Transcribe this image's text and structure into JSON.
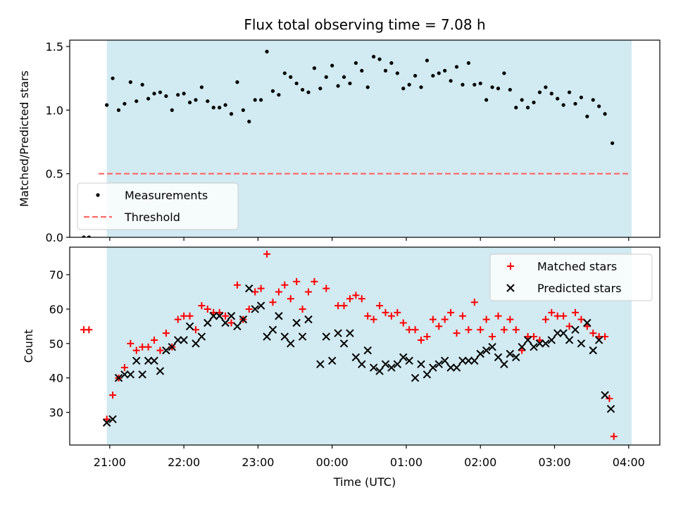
{
  "figure": {
    "title": "Flux total observing time = 7.08 h",
    "xlabel": "Time (UTC)",
    "xticks": [
      "21:00",
      "22:00",
      "23:00",
      "00:00",
      "01:00",
      "02:00",
      "03:00",
      "04:00"
    ]
  },
  "colors": {
    "shade": "#add8e6",
    "measurements": "#000000",
    "threshold": "#ff6666",
    "matched": "#ff0000",
    "predicted": "#000000"
  },
  "chart_data": [
    {
      "type": "scatter",
      "ylabel": "Matched/Predicted stars",
      "ylim": [
        0,
        1.55
      ],
      "xlim_hours": [
        -3.54,
        4.42
      ],
      "yticks": [
        "0.0",
        "0.5",
        "1.0",
        "1.5"
      ],
      "shaded_span_hours": [
        -3.04,
        4.04
      ],
      "legend": {
        "placement": "lower-left",
        "entries": [
          "Measurements",
          "Threshold"
        ]
      },
      "threshold": {
        "value": 0.5,
        "x_range_hours": [
          -3.15,
          4.0
        ]
      },
      "series": [
        {
          "name": "Measurements",
          "points": [
            [
              -3.35,
              0.0
            ],
            [
              -3.28,
              0.0
            ],
            [
              -3.04,
              1.04
            ],
            [
              -2.96,
              1.25
            ],
            [
              -2.88,
              1.0
            ],
            [
              -2.8,
              1.05
            ],
            [
              -2.72,
              1.22
            ],
            [
              -2.64,
              1.07
            ],
            [
              -2.56,
              1.2
            ],
            [
              -2.48,
              1.09
            ],
            [
              -2.4,
              1.13
            ],
            [
              -2.32,
              1.14
            ],
            [
              -2.24,
              1.11
            ],
            [
              -2.16,
              1.0
            ],
            [
              -2.08,
              1.12
            ],
            [
              -2.0,
              1.13
            ],
            [
              -1.92,
              1.06
            ],
            [
              -1.84,
              1.08
            ],
            [
              -1.76,
              1.18
            ],
            [
              -1.68,
              1.07
            ],
            [
              -1.6,
              1.02
            ],
            [
              -1.52,
              1.02
            ],
            [
              -1.44,
              1.04
            ],
            [
              -1.36,
              0.97
            ],
            [
              -1.28,
              1.22
            ],
            [
              -1.2,
              1.0
            ],
            [
              -1.12,
              0.91
            ],
            [
              -1.04,
              1.08
            ],
            [
              -0.96,
              1.08
            ],
            [
              -0.88,
              1.46
            ],
            [
              -0.8,
              1.15
            ],
            [
              -0.72,
              1.12
            ],
            [
              -0.64,
              1.29
            ],
            [
              -0.56,
              1.26
            ],
            [
              -0.48,
              1.21
            ],
            [
              -0.4,
              1.16
            ],
            [
              -0.32,
              1.14
            ],
            [
              -0.24,
              1.33
            ],
            [
              -0.16,
              1.17
            ],
            [
              -0.08,
              1.26
            ],
            [
              0.0,
              1.35
            ],
            [
              0.08,
              1.19
            ],
            [
              0.16,
              1.26
            ],
            [
              0.24,
              1.21
            ],
            [
              0.32,
              1.37
            ],
            [
              0.4,
              1.31
            ],
            [
              0.48,
              1.18
            ],
            [
              0.56,
              1.42
            ],
            [
              0.64,
              1.4
            ],
            [
              0.72,
              1.31
            ],
            [
              0.8,
              1.37
            ],
            [
              0.88,
              1.29
            ],
            [
              0.96,
              1.17
            ],
            [
              1.04,
              1.2
            ],
            [
              1.12,
              1.27
            ],
            [
              1.2,
              1.18
            ],
            [
              1.28,
              1.39
            ],
            [
              1.36,
              1.27
            ],
            [
              1.44,
              1.29
            ],
            [
              1.52,
              1.31
            ],
            [
              1.6,
              1.23
            ],
            [
              1.68,
              1.34
            ],
            [
              1.76,
              1.2
            ],
            [
              1.84,
              1.37
            ],
            [
              1.92,
              1.2
            ],
            [
              2.0,
              1.21
            ],
            [
              2.08,
              1.08
            ],
            [
              2.16,
              1.18
            ],
            [
              2.24,
              1.17
            ],
            [
              2.32,
              1.29
            ],
            [
              2.4,
              1.16
            ],
            [
              2.48,
              1.02
            ],
            [
              2.56,
              1.08
            ],
            [
              2.64,
              1.02
            ],
            [
              2.72,
              1.06
            ],
            [
              2.8,
              1.14
            ],
            [
              2.88,
              1.18
            ],
            [
              2.96,
              1.13
            ],
            [
              3.04,
              1.09
            ],
            [
              3.12,
              1.04
            ],
            [
              3.2,
              1.14
            ],
            [
              3.28,
              1.05
            ],
            [
              3.36,
              1.1
            ],
            [
              3.44,
              0.95
            ],
            [
              3.52,
              1.08
            ],
            [
              3.6,
              1.03
            ],
            [
              3.68,
              0.97
            ],
            [
              3.78,
              0.74
            ]
          ]
        }
      ]
    },
    {
      "type": "scatter",
      "ylabel": "Count",
      "ylim": [
        20.5,
        78
      ],
      "xlim_hours": [
        -3.54,
        4.42
      ],
      "yticks": [
        "30",
        "40",
        "50",
        "60",
        "70"
      ],
      "shaded_span_hours": [
        -3.04,
        4.04
      ],
      "legend": {
        "placement": "top-right",
        "entries": [
          "Matched stars",
          "Predicted stars"
        ]
      },
      "series": [
        {
          "name": "Matched stars",
          "marker": "+",
          "points": [
            [
              -3.35,
              54
            ],
            [
              -3.28,
              54
            ],
            [
              -3.04,
              28
            ],
            [
              -2.96,
              35
            ],
            [
              -2.88,
              40
            ],
            [
              -2.8,
              43
            ],
            [
              -2.72,
              50
            ],
            [
              -2.64,
              48
            ],
            [
              -2.56,
              49
            ],
            [
              -2.48,
              49
            ],
            [
              -2.4,
              51
            ],
            [
              -2.32,
              48
            ],
            [
              -2.24,
              53
            ],
            [
              -2.16,
              49
            ],
            [
              -2.08,
              57
            ],
            [
              -2.0,
              58
            ],
            [
              -1.92,
              58
            ],
            [
              -1.84,
              54
            ],
            [
              -1.76,
              61
            ],
            [
              -1.68,
              60
            ],
            [
              -1.6,
              59
            ],
            [
              -1.52,
              59
            ],
            [
              -1.44,
              58
            ],
            [
              -1.36,
              56
            ],
            [
              -1.28,
              67
            ],
            [
              -1.2,
              57
            ],
            [
              -1.12,
              60
            ],
            [
              -1.04,
              65
            ],
            [
              -0.96,
              66
            ],
            [
              -0.88,
              76
            ],
            [
              -0.8,
              62
            ],
            [
              -0.72,
              65
            ],
            [
              -0.64,
              67
            ],
            [
              -0.56,
              63
            ],
            [
              -0.48,
              68
            ],
            [
              -0.4,
              60
            ],
            [
              -0.32,
              65
            ],
            [
              -0.24,
              68
            ],
            [
              -0.08,
              66
            ],
            [
              0.08,
              61
            ],
            [
              0.16,
              61
            ],
            [
              0.24,
              63
            ],
            [
              0.32,
              64
            ],
            [
              0.4,
              63
            ],
            [
              0.48,
              58
            ],
            [
              0.56,
              57
            ],
            [
              0.64,
              61
            ],
            [
              0.72,
              59
            ],
            [
              0.8,
              58
            ],
            [
              0.88,
              59
            ],
            [
              0.96,
              56
            ],
            [
              1.04,
              54
            ],
            [
              1.12,
              54
            ],
            [
              1.2,
              51
            ],
            [
              1.28,
              52
            ],
            [
              1.36,
              57
            ],
            [
              1.44,
              55
            ],
            [
              1.52,
              57
            ],
            [
              1.6,
              59
            ],
            [
              1.68,
              53
            ],
            [
              1.76,
              58
            ],
            [
              1.84,
              54
            ],
            [
              1.92,
              62
            ],
            [
              2.0,
              54
            ],
            [
              2.08,
              57
            ],
            [
              2.16,
              52
            ],
            [
              2.24,
              58
            ],
            [
              2.32,
              54
            ],
            [
              2.4,
              57
            ],
            [
              2.48,
              54
            ],
            [
              2.56,
              48
            ],
            [
              2.64,
              52
            ],
            [
              2.72,
              52
            ],
            [
              2.8,
              51
            ],
            [
              2.88,
              57
            ],
            [
              2.96,
              59
            ],
            [
              3.04,
              58
            ],
            [
              3.12,
              58
            ],
            [
              3.2,
              55
            ],
            [
              3.28,
              59
            ],
            [
              3.36,
              57
            ],
            [
              3.44,
              55
            ],
            [
              3.52,
              53
            ],
            [
              3.6,
              52
            ],
            [
              3.68,
              52
            ],
            [
              3.74,
              34
            ],
            [
              3.8,
              23
            ]
          ]
        },
        {
          "name": "Predicted stars",
          "marker": "x",
          "points": [
            [
              -3.04,
              27
            ],
            [
              -2.96,
              28
            ],
            [
              -2.88,
              40
            ],
            [
              -2.8,
              41
            ],
            [
              -2.72,
              41
            ],
            [
              -2.64,
              45
            ],
            [
              -2.56,
              41
            ],
            [
              -2.48,
              45
            ],
            [
              -2.4,
              45
            ],
            [
              -2.32,
              42
            ],
            [
              -2.24,
              48
            ],
            [
              -2.16,
              49
            ],
            [
              -2.08,
              51
            ],
            [
              -2.0,
              51
            ],
            [
              -1.92,
              55
            ],
            [
              -1.84,
              50
            ],
            [
              -1.76,
              52
            ],
            [
              -1.68,
              56
            ],
            [
              -1.6,
              58
            ],
            [
              -1.52,
              58
            ],
            [
              -1.44,
              56
            ],
            [
              -1.36,
              58
            ],
            [
              -1.28,
              55
            ],
            [
              -1.2,
              57
            ],
            [
              -1.12,
              66
            ],
            [
              -1.04,
              60
            ],
            [
              -0.96,
              61
            ],
            [
              -0.88,
              52
            ],
            [
              -0.8,
              54
            ],
            [
              -0.72,
              58
            ],
            [
              -0.64,
              52
            ],
            [
              -0.56,
              50
            ],
            [
              -0.48,
              56
            ],
            [
              -0.4,
              52
            ],
            [
              -0.32,
              57
            ],
            [
              -0.16,
              44
            ],
            [
              -0.08,
              52
            ],
            [
              0.0,
              45
            ],
            [
              0.08,
              53
            ],
            [
              0.16,
              50
            ],
            [
              0.24,
              53
            ],
            [
              0.32,
              46
            ],
            [
              0.4,
              44
            ],
            [
              0.48,
              48
            ],
            [
              0.56,
              43
            ],
            [
              0.64,
              42
            ],
            [
              0.72,
              44
            ],
            [
              0.8,
              43
            ],
            [
              0.88,
              44
            ],
            [
              0.96,
              46
            ],
            [
              1.04,
              45
            ],
            [
              1.12,
              40
            ],
            [
              1.2,
              44
            ],
            [
              1.28,
              41
            ],
            [
              1.36,
              43
            ],
            [
              1.44,
              44
            ],
            [
              1.52,
              45
            ],
            [
              1.6,
              43
            ],
            [
              1.68,
              43
            ],
            [
              1.76,
              45
            ],
            [
              1.84,
              45
            ],
            [
              1.92,
              45
            ],
            [
              2.0,
              47
            ],
            [
              2.08,
              48
            ],
            [
              2.16,
              49
            ],
            [
              2.24,
              46
            ],
            [
              2.32,
              44
            ],
            [
              2.4,
              47
            ],
            [
              2.48,
              46
            ],
            [
              2.56,
              49
            ],
            [
              2.64,
              51
            ],
            [
              2.72,
              49
            ],
            [
              2.8,
              50
            ],
            [
              2.88,
              50
            ],
            [
              2.96,
              51
            ],
            [
              3.04,
              53
            ],
            [
              3.12,
              53
            ],
            [
              3.2,
              51
            ],
            [
              3.28,
              54
            ],
            [
              3.36,
              50
            ],
            [
              3.44,
              56
            ],
            [
              3.52,
              48
            ],
            [
              3.6,
              51
            ],
            [
              3.68,
              35
            ],
            [
              3.76,
              31
            ]
          ]
        }
      ]
    }
  ]
}
